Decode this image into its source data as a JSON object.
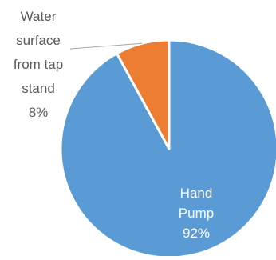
{
  "chart_data": {
    "type": "pie",
    "slices": [
      {
        "label_lines": [
          "Hand",
          "Pump"
        ],
        "percent_label": "92%",
        "value": 92,
        "color": "#5B9BD5"
      },
      {
        "label_lines": [
          "Water",
          "surface",
          "from tap",
          "stand"
        ],
        "percent_label": "8%",
        "value": 8,
        "color": "#ED7D31"
      }
    ],
    "start_angle_deg": 0,
    "direction": "clockwise",
    "label_color_inside": "#ffffff",
    "label_color_outside": "#595959",
    "leader_line_color": "#A6A6A6",
    "legend": "none"
  }
}
